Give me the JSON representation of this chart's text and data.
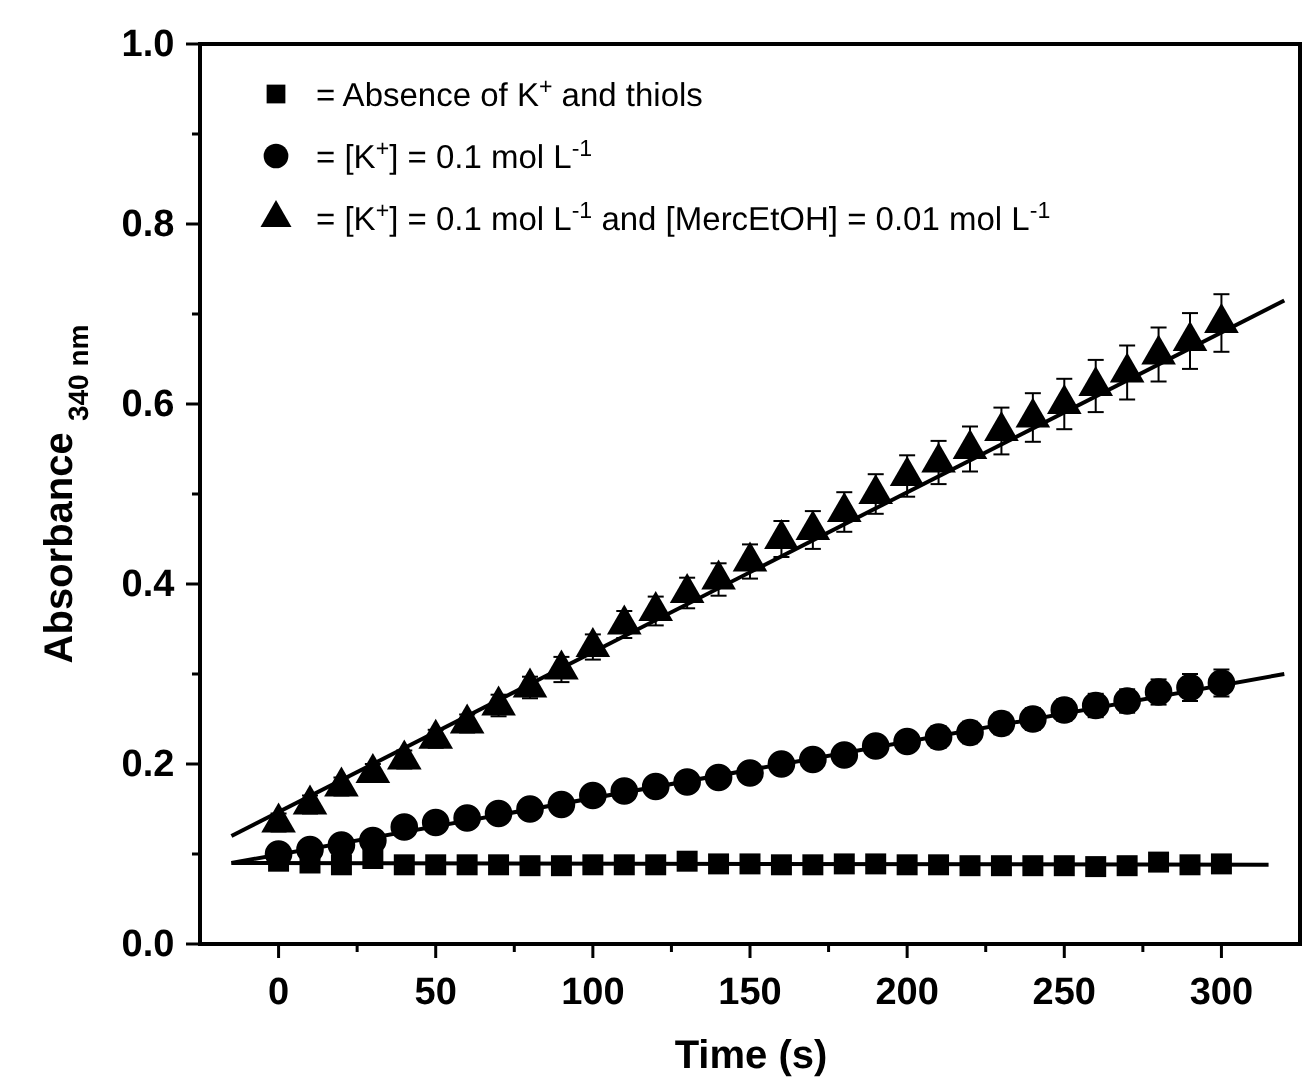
{
  "chart_data": {
    "type": "scatter",
    "xlabel": "Time (s)",
    "ylabel": "Absorbance $_{340 nm}$",
    "xlim": [
      -25,
      325
    ],
    "ylim": [
      0,
      1
    ],
    "xticks": [
      0,
      {
        "value": 25,
        "label": null
      },
      50,
      {
        "value": 75,
        "label": null
      },
      100,
      {
        "value": 125,
        "label": null
      },
      150,
      {
        "value": 175,
        "label": null
      },
      200,
      {
        "value": 225,
        "label": null
      },
      250,
      {
        "value": 275,
        "label": null
      },
      300
    ],
    "yticks": [
      {
        "value": 0,
        "label": "0.0"
      },
      {
        "value": 0.1,
        "label": null
      },
      0.2,
      {
        "value": 0.3,
        "label": null
      },
      0.4,
      {
        "value": 0.5,
        "label": null
      },
      0.6,
      {
        "value": 0.7,
        "label": null
      },
      0.8,
      {
        "value": 0.9,
        "label": null
      },
      {
        "value": 1,
        "label": "1.0"
      }
    ],
    "grid": false,
    "legend": "top left",
    "x": [
      0,
      10,
      20,
      30,
      40,
      50,
      60,
      70,
      80,
      90,
      100,
      110,
      120,
      130,
      140,
      150,
      160,
      170,
      180,
      190,
      200,
      210,
      220,
      230,
      240,
      250,
      260,
      270,
      280,
      290,
      300
    ],
    "series": [
      {
        "name": "=  Absence of K$^{+}$ and thiols",
        "color": "#000000",
        "marker": "square",
        "values": [
          0.092,
          0.09,
          0.088,
          0.095,
          0.088,
          0.088,
          0.088,
          0.088,
          0.087,
          0.087,
          0.088,
          0.088,
          0.088,
          0.092,
          0.089,
          0.089,
          0.088,
          0.088,
          0.089,
          0.089,
          0.088,
          0.088,
          0.087,
          0.087,
          0.087,
          0.087,
          0.086,
          0.087,
          0.091,
          0.088,
          0.089
        ]
      },
      {
        "name": "=  [K$^{+}$] = 0.1 mol L$^{-1}$",
        "color": "#000000",
        "marker": "circle",
        "values": [
          0.1,
          0.105,
          0.11,
          0.115,
          0.13,
          0.135,
          0.14,
          0.145,
          0.15,
          0.155,
          0.165,
          0.17,
          0.175,
          0.18,
          0.185,
          0.19,
          0.2,
          0.205,
          0.21,
          0.22,
          0.225,
          0.23,
          0.235,
          0.245,
          0.25,
          0.26,
          0.265,
          0.27,
          0.28,
          0.285,
          0.29
        ],
        "errors": [
          0.008,
          0.008,
          0.008,
          0.008,
          0.008,
          0.008,
          0.008,
          0.008,
          0.008,
          0.008,
          0.008,
          0.008,
          0.008,
          0.008,
          0.01,
          0.01,
          0.01,
          0.01,
          0.01,
          0.01,
          0.01,
          0.012,
          0.012,
          0.012,
          0.012,
          0.012,
          0.013,
          0.013,
          0.014,
          0.015,
          0.015
        ]
      },
      {
        "name": "=  [K$^{+}$] = 0.1 mol L$^{-1}$ and [MercEtOH] = 0.01 mol L$^{-1}$",
        "color": "#000000",
        "marker": "triangle",
        "values": [
          0.135,
          0.155,
          0.175,
          0.19,
          0.205,
          0.228,
          0.245,
          0.265,
          0.285,
          0.305,
          0.33,
          0.355,
          0.37,
          0.39,
          0.405,
          0.425,
          0.45,
          0.46,
          0.48,
          0.5,
          0.52,
          0.535,
          0.55,
          0.57,
          0.585,
          0.6,
          0.62,
          0.635,
          0.655,
          0.67,
          0.69
        ],
        "errors": [
          0.01,
          0.01,
          0.01,
          0.01,
          0.01,
          0.01,
          0.01,
          0.012,
          0.012,
          0.014,
          0.014,
          0.015,
          0.016,
          0.017,
          0.018,
          0.019,
          0.02,
          0.021,
          0.022,
          0.022,
          0.023,
          0.024,
          0.025,
          0.026,
          0.027,
          0.028,
          0.029,
          0.03,
          0.03,
          0.031,
          0.032
        ]
      },
      {
        "type": "line",
        "color": "#000000",
        "x": [
          -15,
          315
        ],
        "values": [
          0.09,
          0.088
        ]
      },
      {
        "type": "line",
        "color": "#000000",
        "x": [
          -15,
          320
        ],
        "values": [
          0.09,
          0.3
        ]
      },
      {
        "type": "line",
        "color": "#000000",
        "x": [
          -15,
          320
        ],
        "values": [
          0.12,
          0.715
        ]
      }
    ]
  }
}
